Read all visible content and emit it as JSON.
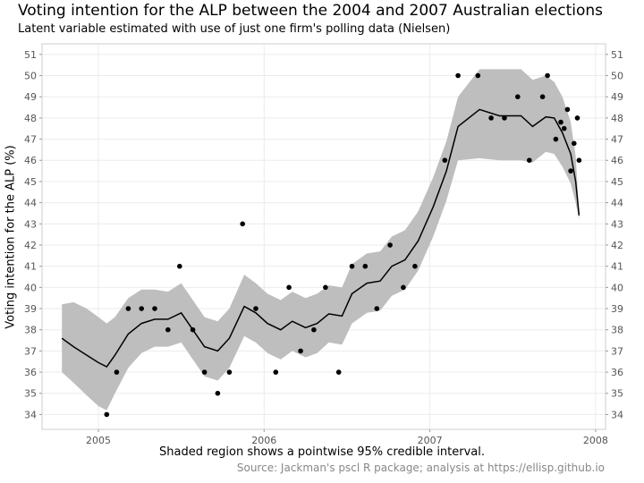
{
  "chart_data": {
    "type": "line",
    "title": "Voting intention for the ALP between the 2004 and 2007 Australian elections",
    "subtitle": "Latent variable estimated with use of just one firm's polling data (Nielsen)",
    "xlabel": "Shaded region shows a pointwise 95% credible interval.",
    "ylabel": "Voting intention for the ALP (%)",
    "caption": "Source: Jackman's pscl R package; analysis at https://ellisp.github.io",
    "xlim": [
      2004.66,
      2008.06
    ],
    "ylim": [
      33.3,
      51.5
    ],
    "x_ticks": [
      2005,
      2006,
      2007,
      2008
    ],
    "x_tick_labels": [
      "2005",
      "2006",
      "2007",
      "2008"
    ],
    "y_ticks": [
      34,
      35,
      36,
      37,
      38,
      39,
      40,
      41,
      42,
      43,
      44,
      45,
      46,
      47,
      48,
      49,
      50,
      51
    ],
    "grid": true,
    "legend": "none",
    "colors": {
      "band": "#bebebe",
      "line": "#000000",
      "points": "#000000",
      "grid": "#ebebeb"
    },
    "latent": {
      "x": [
        2004.78,
        2004.85,
        2004.93,
        2005.0,
        2005.05,
        2005.1,
        2005.18,
        2005.26,
        2005.34,
        2005.42,
        2005.5,
        2005.57,
        2005.64,
        2005.72,
        2005.79,
        2005.88,
        2005.95,
        2006.02,
        2006.1,
        2006.17,
        2006.25,
        2006.32,
        2006.39,
        2006.47,
        2006.53,
        2006.62,
        2006.7,
        2006.77,
        2006.85,
        2006.93,
        2007.02,
        2007.1,
        2007.17,
        2007.3,
        2007.42,
        2007.55,
        2007.62,
        2007.7,
        2007.75,
        2007.8,
        2007.85,
        2007.88,
        2007.9
      ],
      "value": [
        37.6,
        37.2,
        36.8,
        36.45,
        36.25,
        36.8,
        37.8,
        38.3,
        38.5,
        38.5,
        38.8,
        38.0,
        37.2,
        37.0,
        37.6,
        39.1,
        38.8,
        38.3,
        38.0,
        38.4,
        38.1,
        38.3,
        38.75,
        38.65,
        39.7,
        40.2,
        40.3,
        41.0,
        41.3,
        42.2,
        43.8,
        45.5,
        47.6,
        48.4,
        48.1,
        48.1,
        47.6,
        48.05,
        48.0,
        47.3,
        46.3,
        45.0,
        43.4
      ],
      "lower": [
        36.0,
        35.5,
        34.9,
        34.4,
        34.2,
        35.0,
        36.2,
        36.9,
        37.2,
        37.2,
        37.4,
        36.6,
        35.8,
        35.6,
        36.2,
        37.7,
        37.4,
        36.9,
        36.6,
        37.0,
        36.7,
        36.9,
        37.4,
        37.3,
        38.3,
        38.8,
        38.9,
        39.6,
        39.9,
        40.8,
        42.4,
        44.1,
        46.0,
        46.1,
        46.0,
        46.0,
        45.9,
        46.4,
        46.3,
        45.7,
        44.9,
        44.0,
        43.2
      ],
      "upper": [
        39.2,
        39.3,
        39.0,
        38.6,
        38.3,
        38.6,
        39.5,
        39.9,
        39.9,
        39.8,
        40.2,
        39.4,
        38.6,
        38.4,
        39.0,
        40.6,
        40.2,
        39.7,
        39.4,
        39.8,
        39.5,
        39.7,
        40.1,
        40.0,
        41.1,
        41.6,
        41.7,
        42.4,
        42.7,
        43.6,
        45.2,
        46.9,
        49.0,
        50.3,
        50.3,
        50.3,
        49.8,
        50.0,
        49.7,
        49.0,
        47.8,
        46.2,
        43.6
      ]
    },
    "polls": {
      "x": [
        2005.05,
        2005.11,
        2005.18,
        2005.26,
        2005.34,
        2005.42,
        2005.49,
        2005.57,
        2005.64,
        2005.72,
        2005.79,
        2005.87,
        2005.95,
        2006.07,
        2006.15,
        2006.22,
        2006.3,
        2006.37,
        2006.45,
        2006.53,
        2006.61,
        2006.68,
        2006.76,
        2006.84,
        2006.91,
        2007.09,
        2007.17,
        2007.29,
        2007.37,
        2007.45,
        2007.53,
        2007.6,
        2007.68,
        2007.71,
        2007.76,
        2007.79,
        2007.81,
        2007.83,
        2007.85,
        2007.87,
        2007.89,
        2007.9
      ],
      "y": [
        34,
        36,
        39,
        39,
        39,
        38,
        41,
        38,
        36,
        35,
        36,
        43,
        39,
        36,
        40,
        37,
        38,
        40,
        36,
        41,
        41,
        39,
        42,
        40,
        41,
        46,
        50,
        50,
        48,
        48,
        49,
        46,
        49,
        50,
        47,
        47.8,
        47.5,
        48.4,
        45.5,
        46.8,
        48,
        46
      ]
    }
  }
}
